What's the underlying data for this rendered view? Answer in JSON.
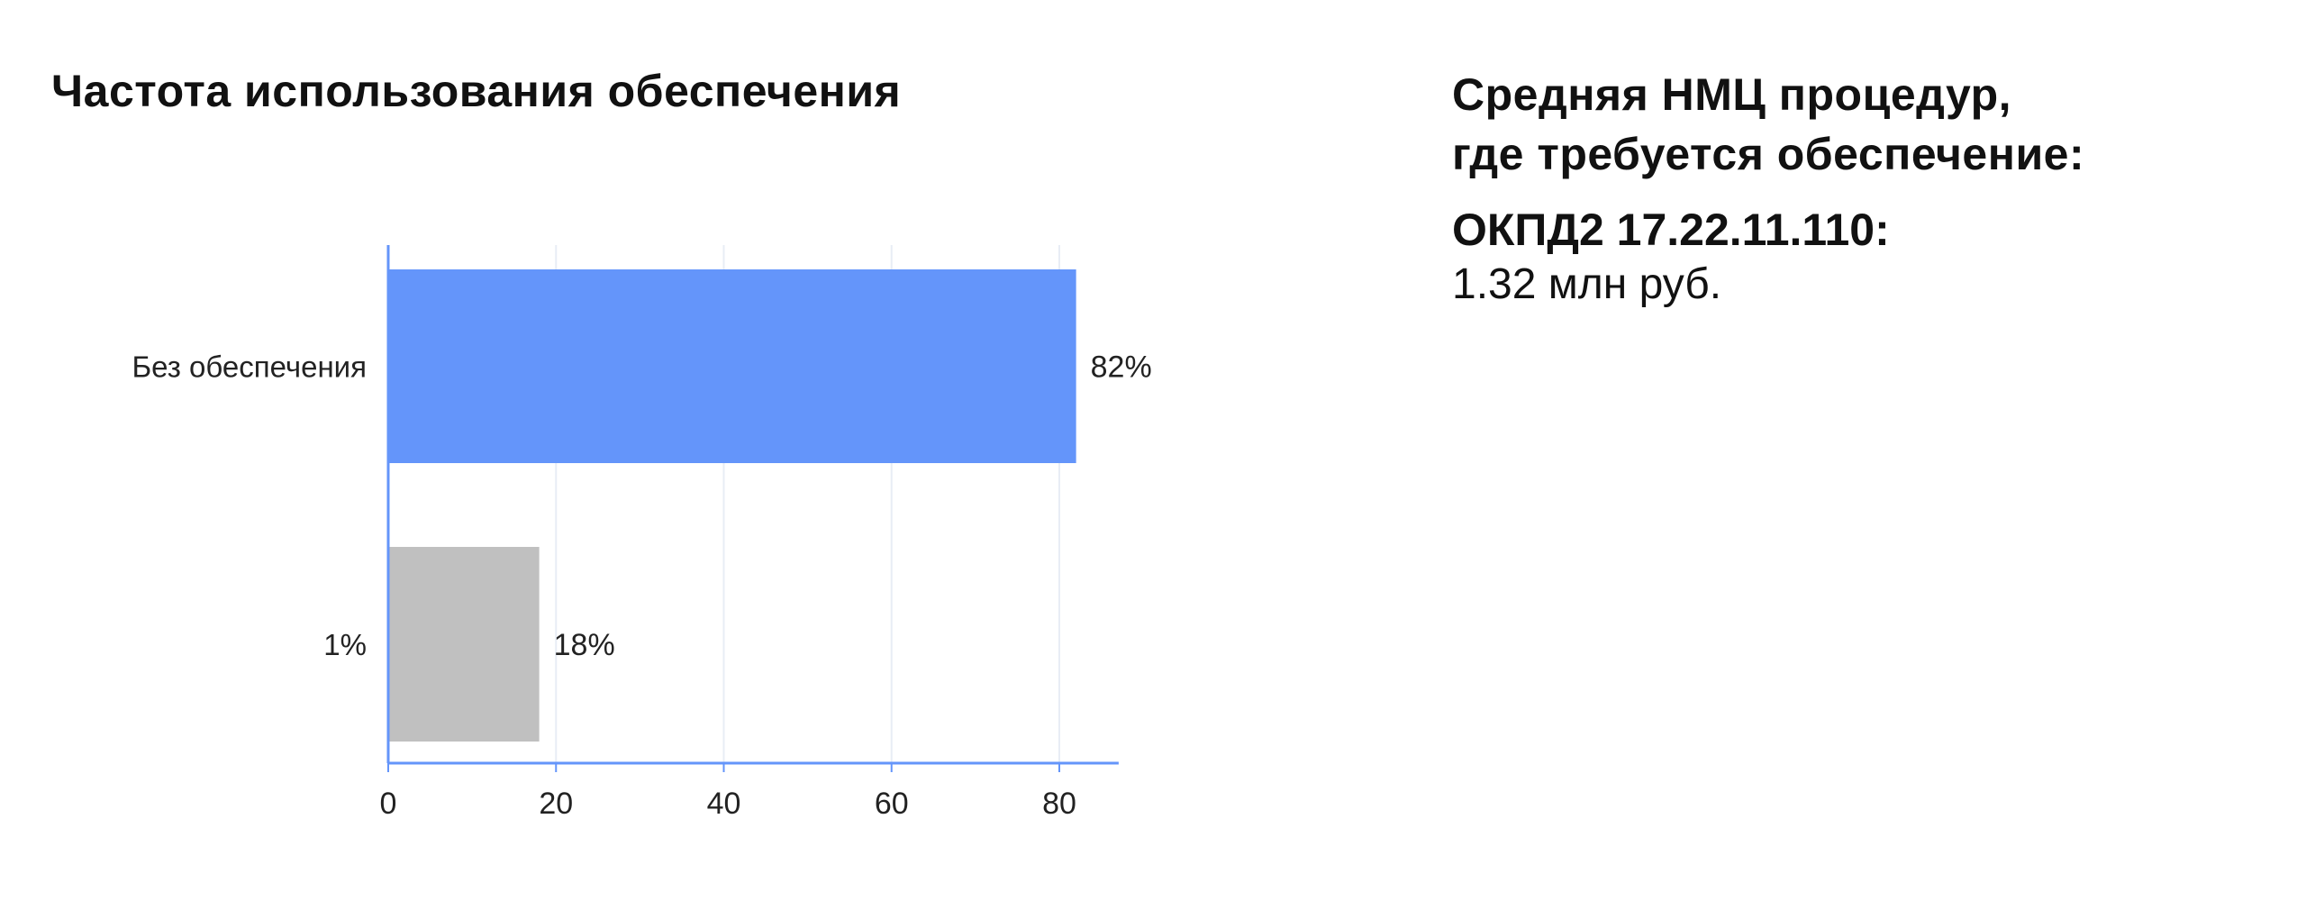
{
  "title": "Частота использования обеспечения",
  "side": {
    "heading_line1": "Средняя НМЦ процедур,",
    "heading_line2": "где требуется обеспечение:",
    "code": "ОКПД2 17.22.11.110:",
    "value": "1.32 млн руб."
  },
  "chart_data": {
    "type": "bar",
    "orientation": "horizontal",
    "title": "Частота использования обеспечения",
    "categories": [
      "Без обеспечения",
      "1%"
    ],
    "values": [
      82,
      18
    ],
    "data_labels": [
      "82%",
      "18%"
    ],
    "colors": [
      "#6495fa",
      "#c0c0c0"
    ],
    "xlim": [
      0,
      86
    ],
    "xticks": [
      0,
      20,
      40,
      60,
      80
    ],
    "grid": true,
    "axis_color": "#6495fa",
    "grid_color": "#e8edf5"
  }
}
